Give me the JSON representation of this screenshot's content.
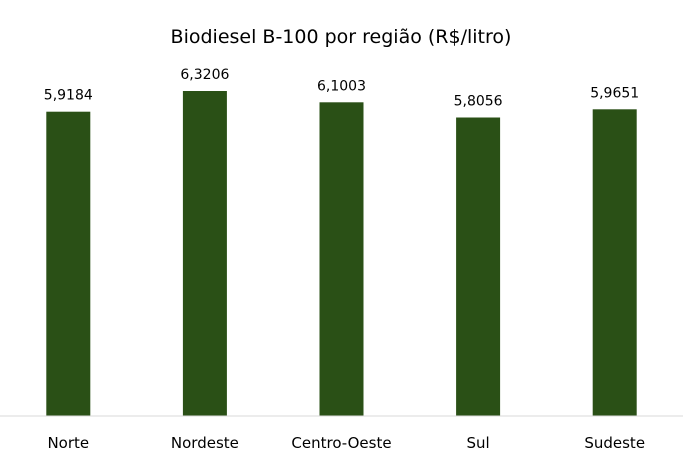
{
  "chart_data": {
    "type": "bar",
    "title": "Biodiesel B-100 por região (R$/litro)",
    "categories": [
      "Norte",
      "Nordeste",
      "Centro-Oeste",
      "Sul",
      "Sudeste"
    ],
    "values": [
      5.9184,
      6.3206,
      6.1003,
      5.8056,
      5.9651
    ],
    "value_labels": [
      "5,9184",
      "6,3206",
      "6,1003",
      "5,8056",
      "5,9651"
    ],
    "ylim": [
      0,
      6.32
    ],
    "grid": false,
    "legend": "none",
    "bar_color": "#2a5016",
    "axis_color": "#d9d9d9"
  }
}
